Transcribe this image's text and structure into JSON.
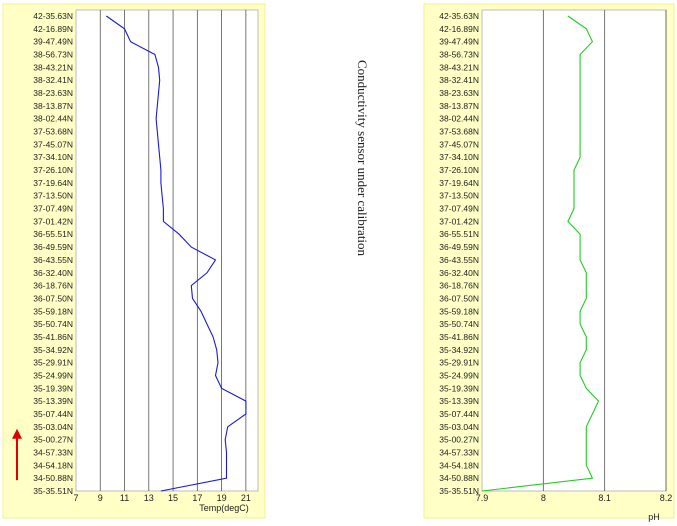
{
  "colors": {
    "panel_background": "#ffffc6",
    "panel_border": "#f3ef8c",
    "plot_background": "#ffffff",
    "grid": "#555555",
    "temperature_line": "#1a1ad6",
    "ph_line": "#22cc22",
    "marker_arrow": "#e00000"
  },
  "annotation": "Conductivity sensor under calibration",
  "y_labels": [
    "42-35.63N",
    "42-16.89N",
    "39-47.49N",
    "38-56.73N",
    "38-43.21N",
    "38-32.41N",
    "38-23.63N",
    "38-13.87N",
    "38-02.44N",
    "37-53.68N",
    "37-45.07N",
    "37-34.10N",
    "37-26.10N",
    "37-19.64N",
    "37-13.50N",
    "37-07.49N",
    "37-01.42N",
    "36-55.51N",
    "36-49.59N",
    "36-43.55N",
    "36-32.40N",
    "36-18.76N",
    "36-07.50N",
    "35-59.18N",
    "35-50.74N",
    "35-41.86N",
    "35-34.92N",
    "35-29.91N",
    "35-24.99N",
    "35-19.39N",
    "35-13.39N",
    "35-07.44N",
    "35-03.04N",
    "35-00.27N",
    "34-57.33N",
    "34-54.18N",
    "34-50.88N",
    "35-35.51N"
  ],
  "marker": {
    "icon": "red-up-arrow",
    "from_label": "34-50.88N",
    "to_label": "35-03.04N"
  },
  "chart_data": [
    {
      "type": "line",
      "xlabel": "Temp(degC)",
      "x_ticks": [
        "7",
        "9",
        "11",
        "13",
        "15",
        "17",
        "19",
        "21"
      ],
      "xlim": [
        7,
        22
      ],
      "grid": true,
      "note": "values are temperature readings, one per latitude label (top to bottom)",
      "series": [
        {
          "values": [
            9.5,
            11.0,
            11.5,
            13.5,
            13.8,
            13.9,
            13.8,
            13.7,
            13.6,
            13.7,
            13.8,
            13.9,
            14.0,
            14.0,
            14.1,
            14.2,
            14.2,
            15.5,
            16.5,
            18.5,
            17.8,
            16.5,
            16.6,
            17.3,
            17.8,
            18.3,
            18.6,
            18.7,
            18.5,
            19.0,
            21.0,
            21.0,
            19.5,
            19.3,
            19.4,
            19.4,
            19.4,
            14.0
          ]
        }
      ]
    },
    {
      "type": "line",
      "xlabel": "pH",
      "x_ticks": [
        "7.9",
        "8",
        "8.1",
        "8.2"
      ],
      "xlim": [
        7.9,
        8.2
      ],
      "grid": true,
      "note": "values are pH readings, one per latitude label (top to bottom)",
      "series": [
        {
          "values": [
            8.04,
            8.07,
            8.08,
            8.06,
            8.06,
            8.06,
            8.06,
            8.06,
            8.06,
            8.06,
            8.06,
            8.06,
            8.05,
            8.05,
            8.05,
            8.05,
            8.04,
            8.06,
            8.06,
            8.06,
            8.07,
            8.07,
            8.07,
            8.06,
            8.06,
            8.07,
            8.07,
            8.06,
            8.06,
            8.07,
            8.09,
            8.08,
            8.07,
            8.07,
            8.07,
            8.07,
            8.08,
            7.9
          ]
        }
      ]
    }
  ]
}
